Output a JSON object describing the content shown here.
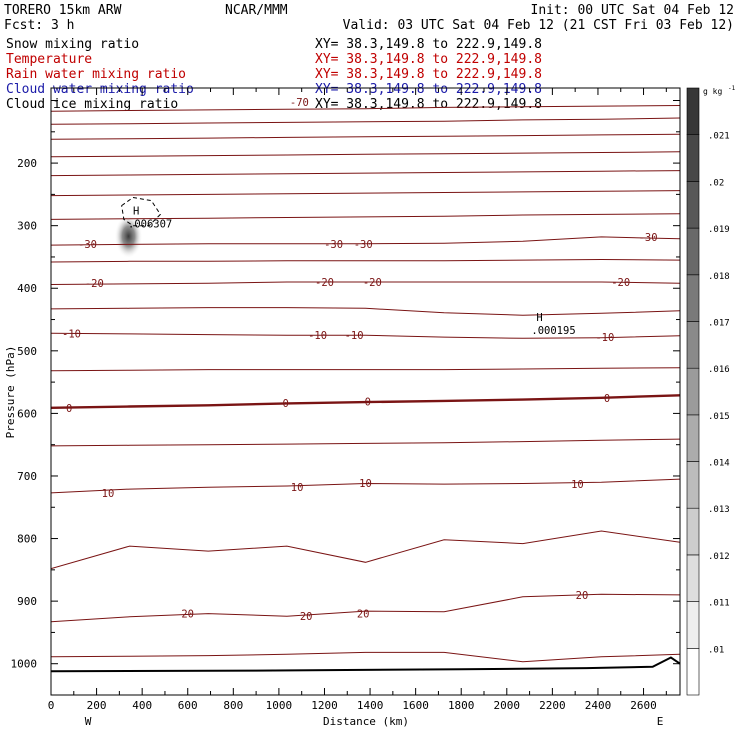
{
  "header": {
    "model": "TORERO  15km ARW",
    "org": "NCAR/MMM",
    "init": "Init: 00 UTC Sat 04 Feb 12",
    "fcst": "Fcst:    3 h",
    "valid": "Valid: 03 UTC Sat 04 Feb 12 (21 CST Fri 03 Feb 12)"
  },
  "fields": [
    {
      "name": "Snow mixing ratio",
      "xy": "XY=  38.3,149.8 to 222.9,149.8",
      "color": "#000000"
    },
    {
      "name": "Temperature",
      "xy": "XY=  38.3,149.8 to 222.9,149.8",
      "color": "#c00000"
    },
    {
      "name": "Rain water mixing ratio",
      "xy": "XY=  38.3,149.8 to 222.9,149.8",
      "color": "#c00000"
    },
    {
      "name": "Cloud water mixing ratio",
      "xy": "XY=  38.3,149.8 to 222.9,149.8",
      "color": "#1a1aa8"
    },
    {
      "name": "Cloud ice mixing ratio",
      "xy": "XY=  38.3,149.8 to 222.9,149.8",
      "color": "#000000"
    }
  ],
  "colors": {
    "temperature": "#7a1414",
    "freezing": "#7a1414",
    "terrain": "#000000"
  },
  "chart_data": {
    "type": "cross-section",
    "xlabel": "Distance (km)",
    "ylabel": "Pressure (hPa)",
    "xlim": [
      0,
      2760
    ],
    "ylim": [
      1050,
      80
    ],
    "x_ticks": [
      0,
      200,
      400,
      600,
      800,
      1000,
      1200,
      1400,
      1600,
      1800,
      2000,
      2200,
      2400,
      2600
    ],
    "y_ticks": [
      200,
      300,
      400,
      500,
      600,
      700,
      800,
      900,
      1000
    ],
    "x_end_labels": {
      "left": "W",
      "right": "E"
    },
    "snow_colorbar": {
      "unit_label": "g kg",
      "unit_exponent": "-1",
      "labels": [
        ".01",
        ".011",
        ".012",
        ".013",
        ".014",
        ".015",
        ".016",
        ".017",
        ".018",
        ".019",
        ".02",
        ".021"
      ]
    },
    "temperature_labels": [
      {
        "text": "-70",
        "x": 1090,
        "p": 102
      },
      {
        "text": "-30",
        "x": 160,
        "p": 329
      },
      {
        "text": "-30",
        "x": 1240,
        "p": 329
      },
      {
        "text": "-30",
        "x": 1370,
        "p": 329
      },
      {
        "text": "-30",
        "x": 2620,
        "p": 318
      },
      {
        "text": "-20",
        "x": 190,
        "p": 392
      },
      {
        "text": "-20",
        "x": 1200,
        "p": 390
      },
      {
        "text": "-20",
        "x": 1410,
        "p": 390
      },
      {
        "text": "-20",
        "x": 2500,
        "p": 390
      },
      {
        "text": "-10",
        "x": 90,
        "p": 472
      },
      {
        "text": "-10",
        "x": 1170,
        "p": 475
      },
      {
        "text": "-10",
        "x": 1330,
        "p": 475
      },
      {
        "text": "-10",
        "x": 2430,
        "p": 478
      },
      {
        "text": "0",
        "x": 80,
        "p": 591
      },
      {
        "text": "0",
        "x": 1030,
        "p": 583
      },
      {
        "text": "0",
        "x": 1390,
        "p": 581
      },
      {
        "text": "0",
        "x": 2440,
        "p": 575
      },
      {
        "text": "10",
        "x": 250,
        "p": 727
      },
      {
        "text": "10",
        "x": 1080,
        "p": 718
      },
      {
        "text": "10",
        "x": 1380,
        "p": 711
      },
      {
        "text": "10",
        "x": 2310,
        "p": 713
      },
      {
        "text": "20",
        "x": 600,
        "p": 920
      },
      {
        "text": "20",
        "x": 1120,
        "p": 924
      },
      {
        "text": "20",
        "x": 1370,
        "p": 920
      },
      {
        "text": "20",
        "x": 2330,
        "p": 890
      }
    ],
    "extrema": [
      {
        "type": "H",
        "value": ".006307",
        "x": 360,
        "p": 282
      },
      {
        "type": "H",
        "value": ".000195",
        "x": 2130,
        "p": 452
      }
    ],
    "temperature_isotherms_deg_c": [
      -70,
      -60,
      -50,
      -40,
      -30,
      -20,
      -10,
      0,
      10,
      20
    ]
  }
}
